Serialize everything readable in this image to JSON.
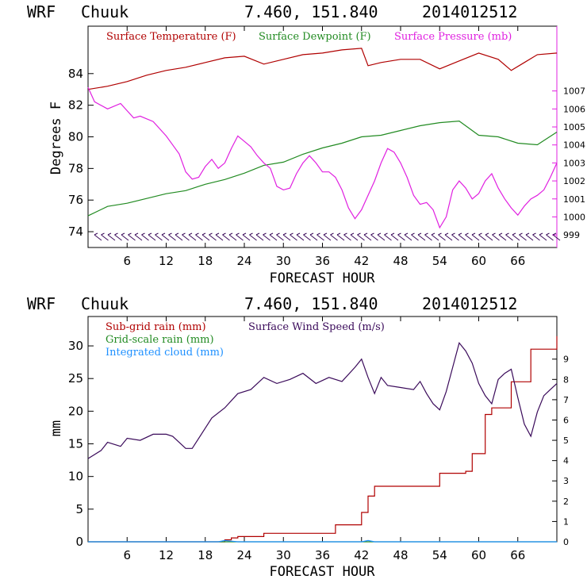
{
  "chart_data": [
    {
      "type": "line",
      "header": {
        "model": "WRF",
        "station": "Chuuk",
        "coords": "7.460, 151.840",
        "date": "2014012512"
      },
      "xlabel": "FORECAST HOUR",
      "ylabel": "Degrees F",
      "xlim": [
        0,
        72
      ],
      "xticks": [
        "6",
        "12",
        "18",
        "24",
        "30",
        "36",
        "42",
        "48",
        "54",
        "60",
        "66"
      ],
      "xtick_values": [
        6,
        12,
        18,
        24,
        30,
        36,
        42,
        48,
        54,
        60,
        66
      ],
      "ylim": [
        73,
        87
      ],
      "yticks": [
        "74",
        "76",
        "78",
        "80",
        "82",
        "84"
      ],
      "ytick_values": [
        74,
        76,
        78,
        80,
        82,
        84
      ],
      "y2lim": [
        998.3,
        1010.6
      ],
      "y2ticks": [
        "999",
        "1000",
        "1001",
        "1002",
        "1003",
        "1004",
        "1005",
        "1006",
        "1007"
      ],
      "y2tick_values": [
        999,
        1000,
        1001,
        1002,
        1003,
        1004,
        1005,
        1006,
        1007
      ],
      "legend": [
        {
          "label": "Surface Temperature (F)",
          "color": "#b00000"
        },
        {
          "label": "Surface Dewpoint (F)",
          "color": "#228b22"
        },
        {
          "label": "Surface Pressure (mb)",
          "color": "#e020e0"
        }
      ],
      "series": [
        {
          "name": "Surface Temperature (F)",
          "color": "#b00000",
          "axis": "left",
          "x": [
            0,
            3,
            6,
            9,
            12,
            15,
            18,
            21,
            24,
            27,
            30,
            33,
            36,
            39,
            42,
            43,
            45,
            48,
            51,
            54,
            57,
            60,
            63,
            65,
            67,
            69,
            72
          ],
          "values": [
            83.0,
            83.2,
            83.5,
            83.9,
            84.2,
            84.4,
            84.7,
            85.0,
            85.1,
            84.6,
            84.9,
            85.2,
            85.3,
            85.5,
            85.6,
            84.5,
            84.7,
            84.9,
            84.9,
            84.3,
            84.8,
            85.3,
            84.9,
            84.2,
            84.7,
            85.2,
            85.3
          ]
        },
        {
          "name": "Surface Dewpoint (F)",
          "color": "#228b22",
          "axis": "left",
          "x": [
            0,
            3,
            6,
            9,
            12,
            15,
            18,
            21,
            24,
            27,
            30,
            33,
            36,
            39,
            42,
            45,
            48,
            51,
            54,
            57,
            60,
            63,
            66,
            69,
            72
          ],
          "values": [
            75.0,
            75.6,
            75.8,
            76.1,
            76.4,
            76.6,
            77.0,
            77.3,
            77.7,
            78.2,
            78.4,
            78.9,
            79.3,
            79.6,
            80.0,
            80.1,
            80.4,
            80.7,
            80.9,
            81.0,
            80.1,
            80.0,
            79.6,
            79.5,
            80.3
          ]
        },
        {
          "name": "Surface Pressure (mb)",
          "color": "#e020e0",
          "axis": "right",
          "x": [
            0,
            1,
            3,
            5,
            6,
            7,
            8,
            10,
            12,
            13,
            14,
            15,
            16,
            17,
            18,
            19,
            20,
            21,
            22,
            23,
            24,
            25,
            26,
            27,
            28,
            29,
            30,
            31,
            32,
            33,
            34,
            35,
            36,
            37,
            38,
            39,
            40,
            41,
            42,
            43,
            44,
            45,
            46,
            47,
            48,
            49,
            50,
            51,
            52,
            53,
            54,
            55,
            56,
            57,
            58,
            59,
            60,
            61,
            62,
            63,
            64,
            65,
            66,
            67,
            68,
            69,
            70,
            71,
            72
          ],
          "values": [
            1007.2,
            1006.4,
            1006.0,
            1006.3,
            1005.9,
            1005.5,
            1005.6,
            1005.3,
            1004.5,
            1004.0,
            1003.5,
            1002.5,
            1002.1,
            1002.2,
            1002.8,
            1003.2,
            1002.7,
            1003.0,
            1003.8,
            1004.5,
            1004.2,
            1003.9,
            1003.4,
            1003.0,
            1002.7,
            1001.7,
            1001.5,
            1001.6,
            1002.4,
            1003.0,
            1003.4,
            1003.0,
            1002.5,
            1002.5,
            1002.2,
            1001.5,
            1000.5,
            999.9,
            1000.4,
            1001.2,
            1002.0,
            1003.0,
            1003.8,
            1003.6,
            1003.0,
            1002.2,
            1001.2,
            1000.7,
            1000.8,
            1000.4,
            999.4,
            1000.0,
            1001.5,
            1002.0,
            1001.6,
            1001.0,
            1001.3,
            1002.0,
            1002.4,
            1001.6,
            1001.0,
            1000.5,
            1000.1,
            1000.6,
            1001.0,
            1001.2,
            1001.5,
            1002.2,
            1003.0
          ]
        }
      ],
      "wind_barbs": "surface wind barbs along bottom of panel"
    },
    {
      "type": "line",
      "header": {
        "model": "WRF",
        "station": "Chuuk",
        "coords": "7.460, 151.840",
        "date": "2014012512"
      },
      "xlabel": "FORECAST HOUR",
      "ylabel": "mm",
      "xlim": [
        0,
        72
      ],
      "xticks": [
        "6",
        "12",
        "18",
        "24",
        "30",
        "36",
        "42",
        "48",
        "54",
        "60",
        "66"
      ],
      "xtick_values": [
        6,
        12,
        18,
        24,
        30,
        36,
        42,
        48,
        54,
        60,
        66
      ],
      "ylim": [
        0,
        34.5
      ],
      "yticks": [
        "0",
        "5",
        "10",
        "15",
        "20",
        "25",
        "30"
      ],
      "ytick_values": [
        0,
        5,
        10,
        15,
        20,
        25,
        30
      ],
      "y2lim": [
        0,
        11.1
      ],
      "y2ticks": [
        "0",
        "1",
        "2",
        "3",
        "4",
        "5",
        "6",
        "7",
        "8",
        "9"
      ],
      "y2tick_values": [
        0,
        1,
        2,
        3,
        4,
        5,
        6,
        7,
        8,
        9
      ],
      "legend": [
        {
          "label": "Sub-grid rain (mm)",
          "color": "#b00000"
        },
        {
          "label": "Surface Wind Speed (m/s)",
          "color": "#3a0a5a"
        },
        {
          "label": "Grid-scale rain (mm)",
          "color": "#228b22"
        },
        {
          "label": "Integrated cloud (mm)",
          "color": "#1e90ff"
        }
      ],
      "series": [
        {
          "name": "Sub-grid rain (mm)",
          "color": "#b00000",
          "axis": "left",
          "step": true,
          "x": [
            0,
            20,
            21,
            22,
            23,
            26,
            27,
            37,
            38,
            41,
            42,
            43,
            44,
            53,
            54,
            58,
            59,
            61,
            62,
            64,
            65,
            68,
            71,
            72
          ],
          "values": [
            0,
            0,
            0.3,
            0.6,
            0.8,
            0.8,
            1.3,
            1.3,
            2.6,
            2.6,
            4.5,
            7.0,
            8.5,
            8.5,
            10.5,
            10.8,
            13.5,
            19.5,
            20.5,
            20.5,
            24.5,
            29.5,
            29.5,
            31.5
          ]
        },
        {
          "name": "Surface Wind Speed (m/s)",
          "color": "#3a0a5a",
          "axis": "right",
          "x": [
            0,
            2,
            3,
            5,
            6,
            8,
            10,
            12,
            13,
            15,
            16,
            18,
            19,
            21,
            23,
            25,
            27,
            29,
            31,
            33,
            35,
            37,
            39,
            41,
            42,
            43,
            44,
            45,
            46,
            48,
            50,
            51,
            52,
            53,
            54,
            55,
            56,
            57,
            58,
            59,
            60,
            61,
            62,
            63,
            64,
            65,
            66,
            67,
            68,
            69,
            70,
            71,
            72
          ],
          "values": [
            4.1,
            4.5,
            4.9,
            4.7,
            5.1,
            5.0,
            5.3,
            5.3,
            5.2,
            4.6,
            4.6,
            5.6,
            6.1,
            6.6,
            7.3,
            7.5,
            8.1,
            7.8,
            8.0,
            8.3,
            7.8,
            8.1,
            7.9,
            8.6,
            9.0,
            8.1,
            7.3,
            8.1,
            7.7,
            7.6,
            7.5,
            7.9,
            7.3,
            6.8,
            6.5,
            7.4,
            8.6,
            9.8,
            9.4,
            8.8,
            7.8,
            7.2,
            6.8,
            8.0,
            8.3,
            8.5,
            7.1,
            5.8,
            5.2,
            6.4,
            7.2,
            7.5,
            7.8
          ]
        },
        {
          "name": "Grid-scale rain (mm)",
          "color": "#228b22",
          "axis": "left",
          "x": [
            0,
            72
          ],
          "values": [
            0,
            0
          ]
        },
        {
          "name": "Integrated cloud (mm)",
          "color": "#1e90ff",
          "axis": "left",
          "x": [
            0,
            20,
            21,
            22,
            23,
            30,
            42,
            43,
            44,
            72
          ],
          "values": [
            0,
            0,
            0.2,
            0.1,
            0,
            0,
            0,
            0.2,
            0,
            0
          ]
        }
      ]
    }
  ]
}
